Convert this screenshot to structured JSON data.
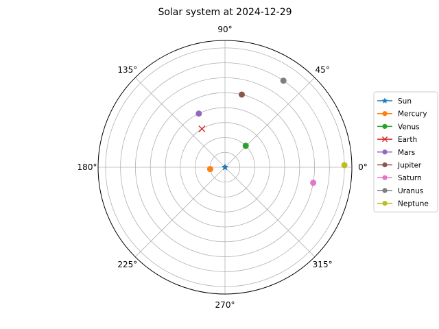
{
  "chart_data": {
    "type": "polar-scatter",
    "title": "Solar system at 2024-12-29",
    "theta_unit": "degrees",
    "theta_ticks": [
      "0°",
      "45°",
      "90°",
      "135°",
      "180°",
      "225°",
      "270°",
      "315°"
    ],
    "theta_tick_values": [
      0,
      45,
      90,
      135,
      180,
      225,
      270,
      315
    ],
    "r_grid_values": [
      1,
      2,
      3,
      4,
      5,
      6,
      7,
      8
    ],
    "rlim": [
      0,
      8.5
    ],
    "r_tick_labels_shown": false,
    "grid": true,
    "legend_position": "right",
    "series": [
      {
        "name": "Sun",
        "marker": "star",
        "color": "#1f77b4",
        "theta": 0,
        "r": 0
      },
      {
        "name": "Mercury",
        "marker": "circle",
        "color": "#ff7f0e",
        "theta": 187,
        "r": 1
      },
      {
        "name": "Venus",
        "marker": "circle",
        "color": "#2ca02c",
        "theta": 46,
        "r": 2
      },
      {
        "name": "Earth",
        "marker": "x",
        "color": "#d62728",
        "theta": 121,
        "r": 3
      },
      {
        "name": "Mars",
        "marker": "circle",
        "color": "#9467bd",
        "theta": 116,
        "r": 4
      },
      {
        "name": "Jupiter",
        "marker": "circle",
        "color": "#8c564b",
        "theta": 77,
        "r": 5
      },
      {
        "name": "Saturn",
        "marker": "circle",
        "color": "#e377c2",
        "theta": 350,
        "r": 6
      },
      {
        "name": "Uranus",
        "marker": "circle",
        "color": "#7f7f7f",
        "theta": 56,
        "r": 7
      },
      {
        "name": "Neptune",
        "marker": "circle",
        "color": "#bcbd22",
        "theta": 1,
        "r": 8
      }
    ]
  }
}
